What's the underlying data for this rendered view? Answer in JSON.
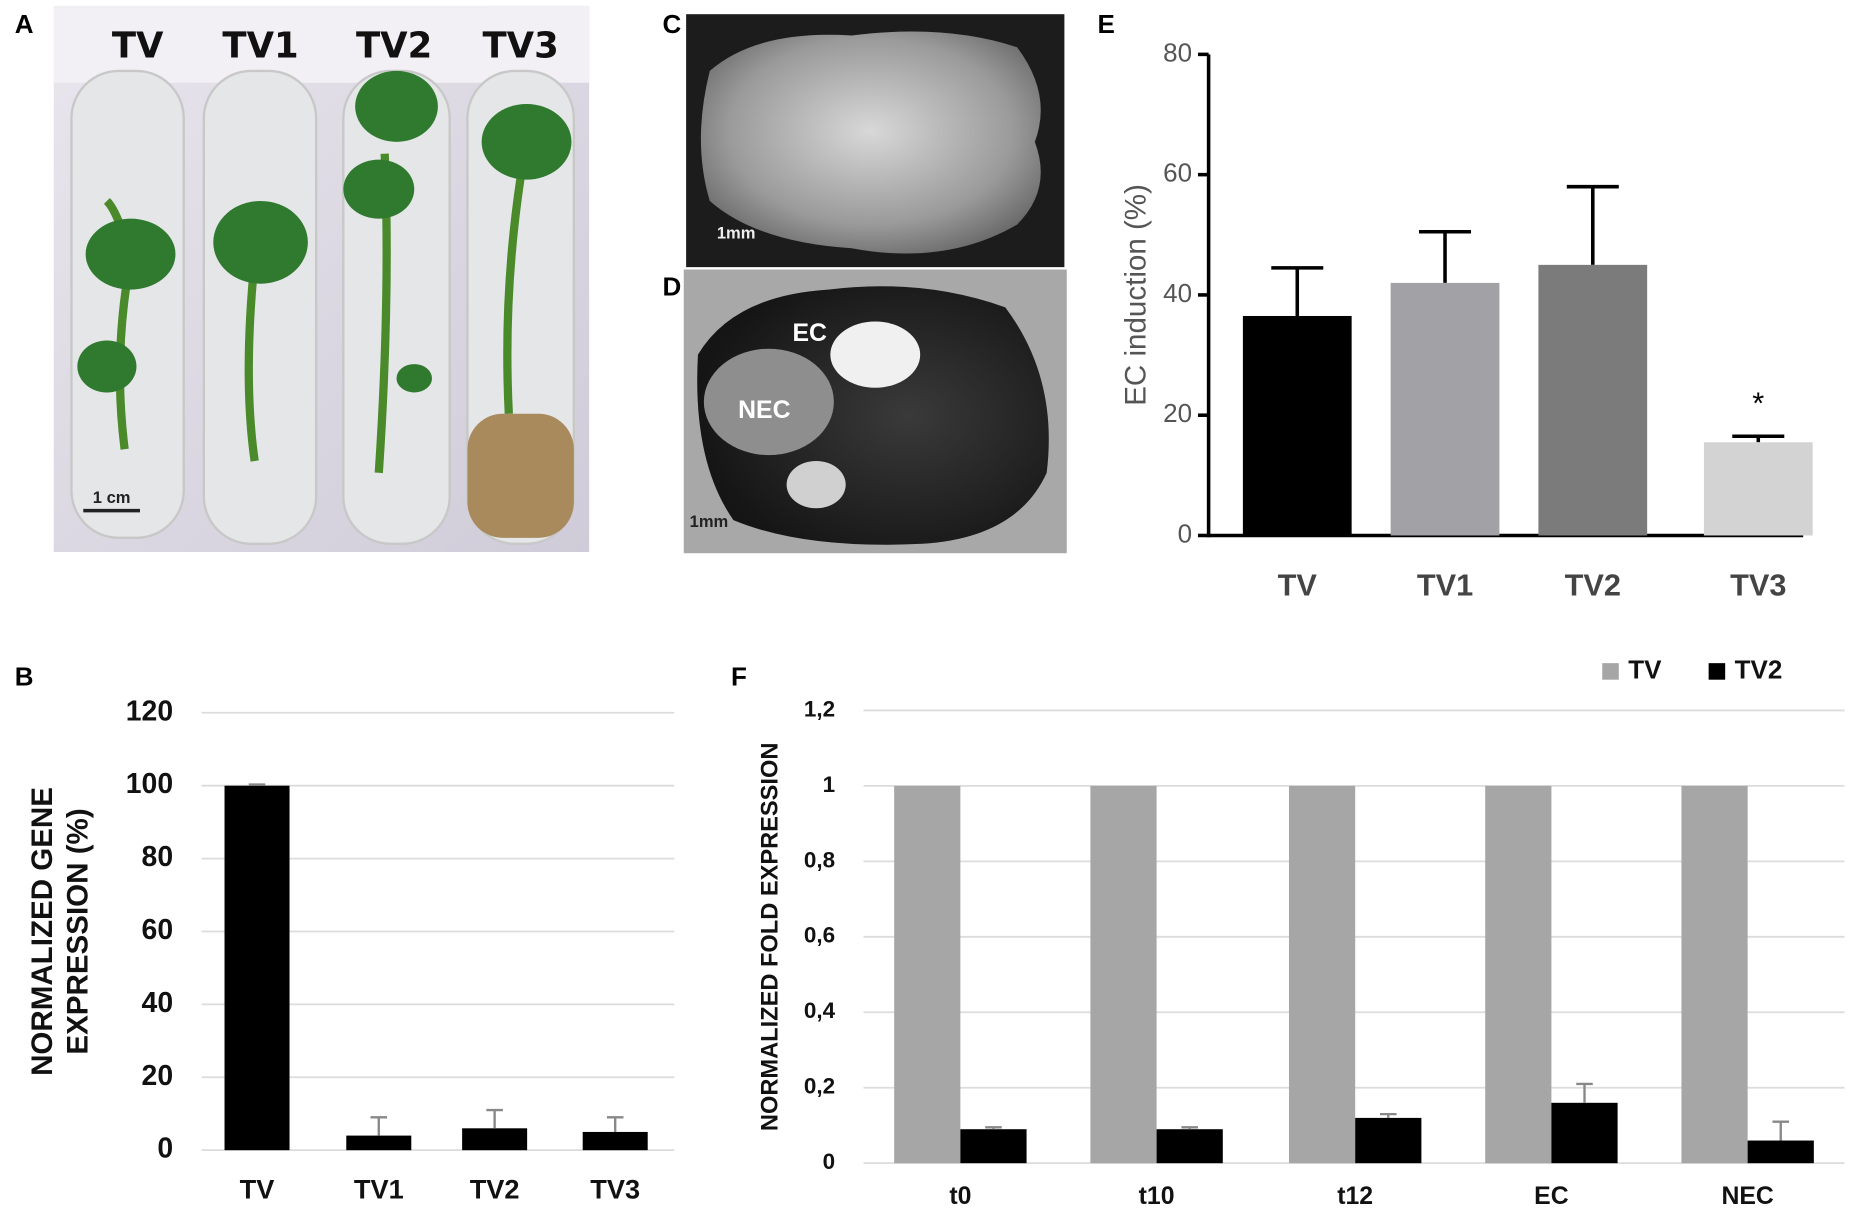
{
  "panel_letters": [
    "A",
    "B",
    "C",
    "D",
    "E",
    "F"
  ],
  "photo_a": {
    "labels": [
      "TV",
      "TV1",
      "TV2",
      "TV3"
    ],
    "scale": "1 cm"
  },
  "photo_c": {
    "scale": "1mm"
  },
  "photo_d": {
    "labels": [
      "EC",
      "NEC"
    ],
    "scale": "1mm"
  },
  "chart_data": [
    {
      "type": "bar",
      "y_label": "EC induction (%)",
      "categories": [
        "TV",
        "TV1",
        "TV2",
        "TV3"
      ],
      "values": [
        36.5,
        42,
        45,
        15.5
      ],
      "errors": [
        8,
        8.5,
        13,
        1
      ],
      "colors": [
        "#000000",
        "#a2a2a6",
        "#7b7b7b",
        "#d3d3d3"
      ],
      "ylim": [
        0,
        80
      ],
      "yticks": [
        0,
        20,
        40,
        60,
        80
      ],
      "grid": false,
      "annotation": "*"
    },
    {
      "type": "bar",
      "y_label": [
        "NORMALIZED GENE",
        "EXPRESSION (%)"
      ],
      "categories": [
        "TV",
        "TV1",
        "TV2",
        "TV3"
      ],
      "values": [
        100,
        4,
        6,
        5
      ],
      "errors": [
        0.3,
        5,
        5,
        4
      ],
      "color": "#000000",
      "ylim": [
        0,
        120
      ],
      "yticks": [
        0,
        20,
        40,
        60,
        80,
        100,
        120
      ],
      "grid": true
    },
    {
      "type": "grouped_bar",
      "y_label": "NORMALIZED FOLD EXPRESSION",
      "categories": [
        "t0",
        "t10",
        "t12",
        "EC",
        "NEC"
      ],
      "series": [
        {
          "name": "TV",
          "color": "#a6a6a6",
          "values": [
            1,
            1,
            1,
            1,
            1
          ]
        },
        {
          "name": "TV2",
          "color": "#000000",
          "values": [
            0.09,
            0.09,
            0.12,
            0.16,
            0.06
          ],
          "errors": [
            0.005,
            0.005,
            0.01,
            0.05,
            0.05
          ]
        }
      ],
      "ylim": [
        0,
        1.2
      ],
      "yticks": [
        0,
        {
          "value": 0.2,
          "label": "0,2"
        },
        {
          "value": 0.4,
          "label": "0,4"
        },
        {
          "value": 0.6,
          "label": "0,6"
        },
        {
          "value": 0.8,
          "label": "0,8"
        },
        1,
        {
          "value": 1.2,
          "label": "1,2"
        }
      ],
      "grid": true,
      "legend": "upper right"
    }
  ]
}
